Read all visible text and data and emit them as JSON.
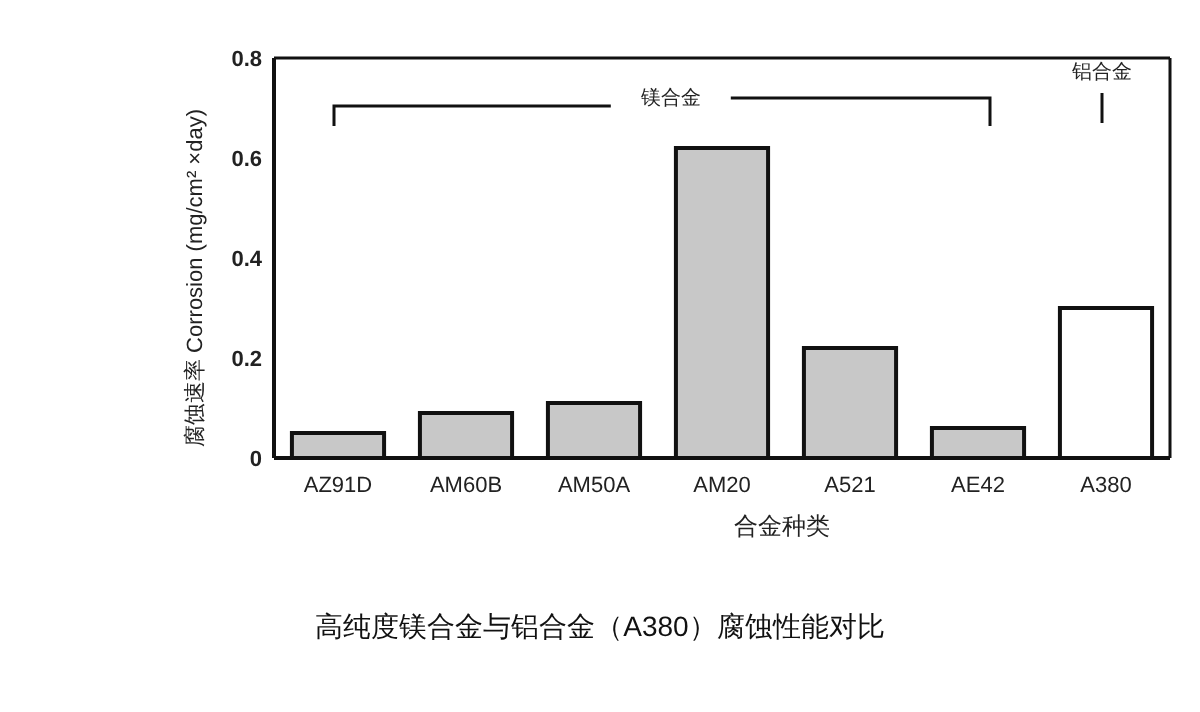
{
  "chart_data": {
    "type": "bar",
    "title": "高纯度镁合金与铝合金（A380）腐蚀性能对比",
    "xlabel": "合金种类",
    "ylabel": "腐蚀速率 Corrosion (mg/cm² ×day)",
    "categories": [
      "AZ91D",
      "AM60B",
      "AM50A",
      "AM20",
      "A521",
      "AE42",
      "A380"
    ],
    "values": [
      0.05,
      0.09,
      0.11,
      0.62,
      0.22,
      0.06,
      0.3
    ],
    "colors": [
      "#c8c8c8",
      "#c8c8c8",
      "#c8c8c8",
      "#c8c8c8",
      "#c8c8c8",
      "#c8c8c8",
      "#ffffff"
    ],
    "ylim": [
      0,
      0.8
    ],
    "yticks": [
      0,
      0.2,
      0.4,
      0.6,
      0.8
    ],
    "annotations": [
      "镁合金",
      "铝合金"
    ]
  }
}
